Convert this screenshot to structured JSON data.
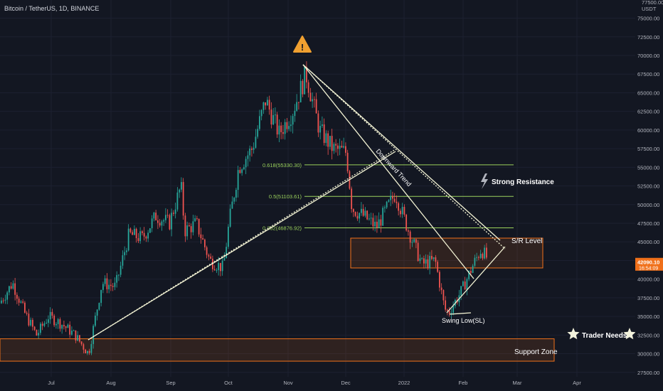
{
  "header": {
    "title": "Bitcoin / TetherUS, 1D, BINANCE"
  },
  "axis": {
    "currency": "USDT",
    "top_label": "77500.00"
  },
  "price_tag": {
    "price": "42090.10",
    "countdown": "16:54:09",
    "color": "#f0701a"
  },
  "colors": {
    "up": "#26a69a",
    "down": "#ef5350",
    "background": "#131722",
    "zone": "#f0701a",
    "fib": "#9bd25c",
    "trend": "#f3f3d4"
  },
  "annotations": {
    "warning_icon": "warning-triangle-icon",
    "downward_trend": "Downward Trend",
    "strong_resistance": "Strong Resistance",
    "lightning_icon": "lightning-icon",
    "sr_level": "S/R Level",
    "swing_low": "Swing Low(SL)",
    "trader_needs": "Trader Needs",
    "star_icon": "star-icon",
    "support_zone": "Support Zone"
  },
  "fib_levels": [
    {
      "label": "0.618(55330.30)",
      "price": 55330.3
    },
    {
      "label": "0.5(51103.61)",
      "price": 51103.61
    },
    {
      "label": "0.382(46876.92)",
      "price": 46876.92
    }
  ],
  "chart_data": {
    "type": "candlestick",
    "title": "Bitcoin / TetherUS, 1D, BINANCE",
    "x_tick_labels": [
      "Jul",
      "Aug",
      "Sep",
      "Oct",
      "Nov",
      "Dec",
      "2022",
      "Feb",
      "Mar",
      "Apr"
    ],
    "y_ticks": [
      27500,
      30000,
      32500,
      35000,
      37500,
      40000,
      42500,
      45000,
      47500,
      50000,
      52500,
      55000,
      57500,
      60000,
      62500,
      65000,
      67500,
      70000,
      72500,
      75000
    ],
    "y_tick_labels": [
      "27500.00",
      "30000.00",
      "32500.00",
      "35000.00",
      "37500.00",
      "40000.00",
      "42500.00",
      "45000.00",
      "47500.00",
      "50000.00",
      "52500.00",
      "55000.00",
      "57500.00",
      "60000.00",
      "62500.00",
      "65000.00",
      "67500.00",
      "70000.00",
      "72500.00",
      "75000.00"
    ],
    "ylim": [
      25000,
      78500
    ],
    "close_path": [
      [
        "2021-06-01",
        37000
      ],
      [
        "2021-06-08",
        39500
      ],
      [
        "2021-06-15",
        35500
      ],
      [
        "2021-06-22",
        32500
      ],
      [
        "2021-06-29",
        35000
      ],
      [
        "2021-07-06",
        34000
      ],
      [
        "2021-07-13",
        32500
      ],
      [
        "2021-07-20",
        30000
      ],
      [
        "2021-07-27",
        39500
      ],
      [
        "2021-08-03",
        39000
      ],
      [
        "2021-08-10",
        46000
      ],
      [
        "2021-08-17",
        45500
      ],
      [
        "2021-08-24",
        48500
      ],
      [
        "2021-08-31",
        47500
      ],
      [
        "2021-09-06",
        52500
      ],
      [
        "2021-09-08",
        46500
      ],
      [
        "2021-09-14",
        47500
      ],
      [
        "2021-09-21",
        42500
      ],
      [
        "2021-09-28",
        41500
      ],
      [
        "2021-10-01",
        47500
      ],
      [
        "2021-10-06",
        55000
      ],
      [
        "2021-10-13",
        57500
      ],
      [
        "2021-10-20",
        64000
      ],
      [
        "2021-10-27",
        59500
      ],
      [
        "2021-11-03",
        62500
      ],
      [
        "2021-11-10",
        67500
      ],
      [
        "2021-11-17",
        60000
      ],
      [
        "2021-11-24",
        57500
      ],
      [
        "2021-12-01",
        57000
      ],
      [
        "2021-12-04",
        49500
      ],
      [
        "2021-12-10",
        48500
      ],
      [
        "2021-12-17",
        47000
      ],
      [
        "2021-12-27",
        51500
      ],
      [
        "2022-01-03",
        46500
      ],
      [
        "2022-01-10",
        42000
      ],
      [
        "2022-01-17",
        42500
      ],
      [
        "2022-01-22",
        36000
      ],
      [
        "2022-01-24",
        35500
      ],
      [
        "2022-01-31",
        38500
      ],
      [
        "2022-02-06",
        42000
      ],
      [
        "2022-02-10",
        44000
      ],
      [
        "2022-02-15",
        42090
      ]
    ],
    "support_zone": [
      29000,
      32000
    ],
    "sr_zone": [
      41500,
      45500
    ],
    "fib_levels": [
      55330.3,
      51103.61,
      46876.92
    ]
  }
}
